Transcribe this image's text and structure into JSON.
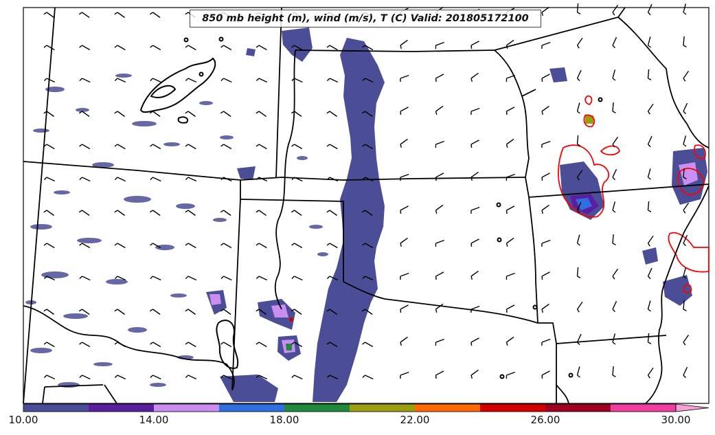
{
  "title": "850 mb height (m), wind (m/s), T (C) Valid: 201805172100",
  "colorbar": {
    "labels": [
      "10.00",
      "14.00",
      "18.00",
      "22.00",
      "26.00",
      "30.00"
    ],
    "colors": [
      "#4b4e96",
      "#5a1fa0",
      "#c98ef0",
      "#2f6fe0",
      "#1f8a3c",
      "#9a9e10",
      "#ff6a00",
      "#d40000",
      "#a00020",
      "#ee3fa0",
      "#f7a0d8"
    ]
  },
  "colors": {
    "shading": "#4b4e96",
    "boundary": "#000000",
    "temp_contour": "#ff0000",
    "barb": "#000000"
  }
}
